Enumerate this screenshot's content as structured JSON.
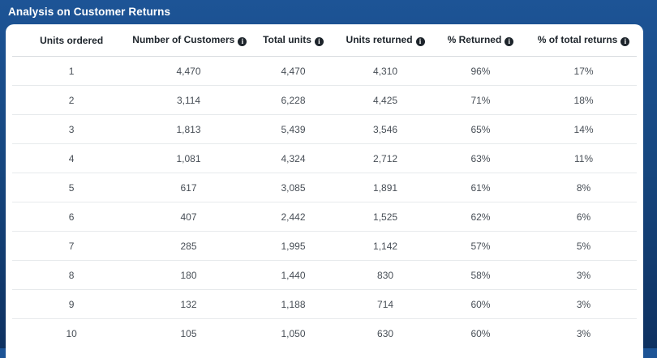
{
  "title": "Analysis on Customer Returns",
  "icons": {
    "info_glyph": "i"
  },
  "colors": {
    "panel_gradient_top": "#1d5496",
    "panel_gradient_bottom": "#0e3161",
    "card_background": "#ffffff",
    "header_text": "#1d242b",
    "cell_text": "#474e56",
    "row_divider": "#e7eaec",
    "header_divider": "#d7dbdf",
    "title_text": "#ffffff"
  },
  "table": {
    "columns": [
      {
        "label": "Units ordered",
        "info": false
      },
      {
        "label": "Number of Customers",
        "info": true
      },
      {
        "label": "Total units",
        "info": true
      },
      {
        "label": "Units returned",
        "info": true
      },
      {
        "label": "% Returned",
        "info": true
      },
      {
        "label": "% of total returns",
        "info": true
      }
    ],
    "column_widths": [
      "19%",
      "18.5%",
      "15%",
      "14.5%",
      "16%",
      "17%"
    ],
    "rows": [
      [
        "1",
        "4,470",
        "4,470",
        "4,310",
        "96%",
        "17%"
      ],
      [
        "2",
        "3,114",
        "6,228",
        "4,425",
        "71%",
        "18%"
      ],
      [
        "3",
        "1,813",
        "5,439",
        "3,546",
        "65%",
        "14%"
      ],
      [
        "4",
        "1,081",
        "4,324",
        "2,712",
        "63%",
        "11%"
      ],
      [
        "5",
        "617",
        "3,085",
        "1,891",
        "61%",
        "8%"
      ],
      [
        "6",
        "407",
        "2,442",
        "1,525",
        "62%",
        "6%"
      ],
      [
        "7",
        "285",
        "1,995",
        "1,142",
        "57%",
        "5%"
      ],
      [
        "8",
        "180",
        "1,440",
        "830",
        "58%",
        "3%"
      ],
      [
        "9",
        "132",
        "1,188",
        "714",
        "60%",
        "3%"
      ],
      [
        "10",
        "105",
        "1,050",
        "630",
        "60%",
        "3%"
      ]
    ]
  },
  "chart_data": {
    "type": "table",
    "title": "Analysis on Customer Returns",
    "columns": [
      "Units ordered",
      "Number of Customers",
      "Total units",
      "Units returned",
      "% Returned",
      "% of total returns"
    ],
    "rows": [
      [
        1,
        4470,
        4470,
        4310,
        "96%",
        "17%"
      ],
      [
        2,
        3114,
        6228,
        4425,
        "71%",
        "18%"
      ],
      [
        3,
        1813,
        5439,
        3546,
        "65%",
        "14%"
      ],
      [
        4,
        1081,
        4324,
        2712,
        "63%",
        "11%"
      ],
      [
        5,
        617,
        3085,
        1891,
        "61%",
        "8%"
      ],
      [
        6,
        407,
        2442,
        1525,
        "62%",
        "6%"
      ],
      [
        7,
        285,
        1995,
        1142,
        "57%",
        "5%"
      ],
      [
        8,
        180,
        1440,
        830,
        "58%",
        "3%"
      ],
      [
        9,
        132,
        1188,
        714,
        "60%",
        "3%"
      ],
      [
        10,
        105,
        1050,
        630,
        "60%",
        "3%"
      ]
    ]
  }
}
